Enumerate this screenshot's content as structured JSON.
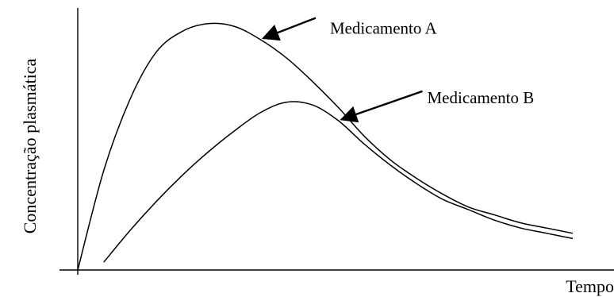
{
  "chart_data": {
    "type": "line",
    "title": "",
    "xlabel": "Tempo",
    "ylabel": "Concentração plasmática",
    "xlim": [
      0,
      100
    ],
    "ylim": [
      0,
      100
    ],
    "grid": false,
    "legend": "none",
    "series": [
      {
        "name": "Medicamento A",
        "color": "#000000",
        "x": [
          0,
          5,
          10,
          15,
          20,
          25,
          30,
          35,
          40,
          45,
          50,
          55,
          60,
          65,
          70,
          75,
          80,
          85,
          90,
          95
        ],
        "y": [
          0,
          38,
          65,
          83,
          91,
          94,
          93,
          88,
          81,
          72,
          62,
          51,
          42,
          35,
          29,
          24,
          21,
          18,
          16,
          14
        ]
      },
      {
        "name": "Medicamento B",
        "color": "#000000",
        "x": [
          5,
          10,
          15,
          20,
          25,
          30,
          35,
          40,
          45,
          50,
          55,
          60,
          65,
          70,
          75,
          80,
          85,
          90,
          95
        ],
        "y": [
          3,
          15,
          26,
          36,
          45,
          53,
          60,
          64,
          63,
          57,
          48,
          40,
          33,
          27,
          23,
          19,
          16,
          14,
          12
        ]
      }
    ],
    "annotations": [
      {
        "text": "Medicamento A",
        "series": 0,
        "point_x": 35
      },
      {
        "text": "Medicamento B",
        "series": 1,
        "point_x": 50
      }
    ]
  }
}
